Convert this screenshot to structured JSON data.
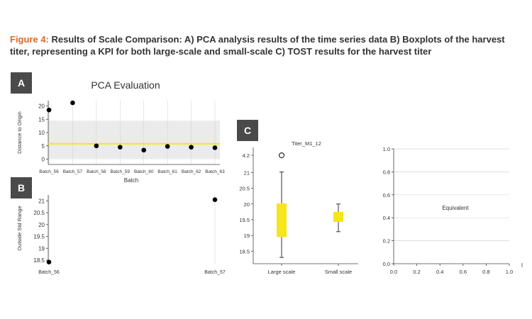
{
  "caption": {
    "lead": "Figure 4:",
    "text": " Results of Scale Comparison: A) PCA analysis results of the time series data B) Boxplots of the harvest titer, representing a KPI for both large-scale and small-scale C) TOST results for the harvest titer"
  },
  "panels": {
    "a": "A",
    "b": "B",
    "c": "C"
  },
  "colors": {
    "yellow": "#f6e51b",
    "band": "#ebebeb",
    "grid": "#d4d4d4"
  },
  "chart_data": [
    {
      "id": "pca",
      "type": "scatter",
      "title": "PCA Evaluation",
      "xlabel": "Batch",
      "ylabel": "Distance to Origin",
      "categories": [
        "Batch_56",
        "Batch_57",
        "Batch_58",
        "Batch_59",
        "Batch_60",
        "Batch_61",
        "Batch_62",
        "Batch_63"
      ],
      "values": [
        18.5,
        21.2,
        5.0,
        4.5,
        3.4,
        4.8,
        4.5,
        4.3
      ],
      "reference_line": 5.8,
      "band": [
        0,
        14.5
      ],
      "ylim": [
        -2,
        22
      ],
      "yticks": [
        0,
        5,
        10,
        15,
        20
      ]
    },
    {
      "id": "outside",
      "type": "scatter",
      "xlabel": "",
      "ylabel": "Outside Std Range",
      "categories": [
        "Batch_56",
        "Batch_57"
      ],
      "values": [
        18.42,
        21.05
      ],
      "ylim": [
        18.35,
        21.25
      ],
      "yticks": [
        18.5,
        19.0,
        19.5,
        20.0,
        20.5,
        21.0
      ]
    },
    {
      "id": "boxplot",
      "type": "box",
      "title": "Titer_M1_12",
      "categories": [
        "Large scale",
        "Small scale"
      ],
      "boxes": [
        {
          "min": 18.3,
          "q1": 18.95,
          "median": 19.5,
          "q3": 20.02,
          "max": 21.02,
          "outliers": [
            21.55
          ]
        },
        {
          "min": 19.12,
          "q1": 19.43,
          "median": 19.6,
          "q3": 19.75,
          "max": 20.0,
          "outliers": []
        }
      ],
      "ylim": [
        18.1,
        21.8
      ],
      "yticks": [
        18.5,
        19.0,
        19.5,
        20.0,
        20.5,
        21.0
      ],
      "outlier_tick_label": "4.2"
    },
    {
      "id": "tost",
      "type": "text",
      "annotation": "Equivalent",
      "xlim": [
        0,
        1
      ],
      "ylim": [
        0,
        1
      ],
      "xticks": [
        "0.0",
        "0.2",
        "0.4",
        "0.6",
        "0.8",
        "1.0"
      ],
      "yticks": [
        "0.0",
        "0.2",
        "0.4",
        "0.6",
        "0.8",
        "1.0"
      ]
    }
  ]
}
